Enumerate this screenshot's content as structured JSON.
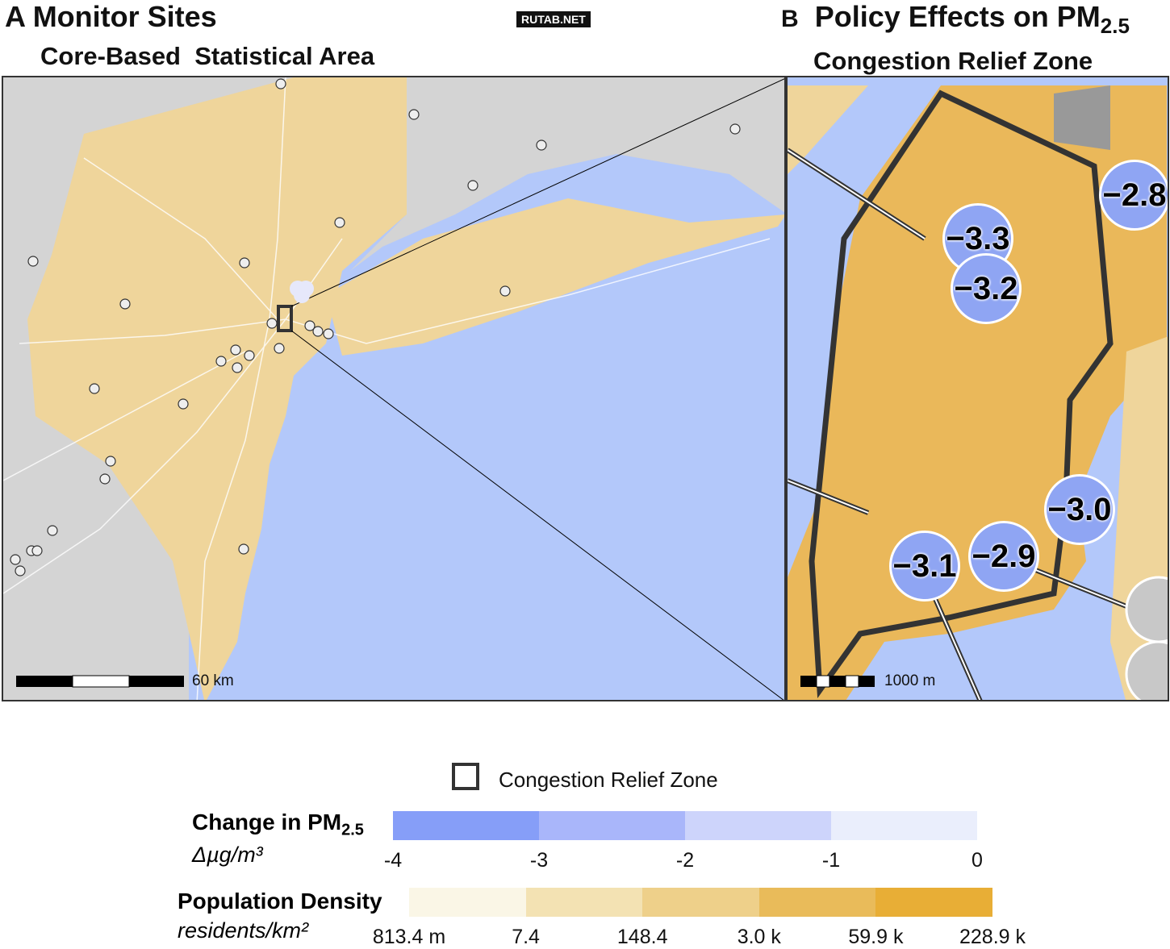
{
  "watermark": "RUTAB.NET",
  "panel_a": {
    "letter": "A",
    "title": "Monitor Sites",
    "subtitle": "Core-Based  Statistical Area",
    "scale_label": "60 km"
  },
  "panel_b": {
    "letter": "B",
    "title": "Policy Effects on PM",
    "title_sub": "2.5",
    "subtitle": "Congestion Relief Zone",
    "scale_label": "1000 m",
    "sites": [
      "−3.3",
      "−3.2",
      "−2.8",
      "−3.0",
      "−2.9",
      "−3.1"
    ]
  },
  "colors": {
    "water": "#b3c8fa",
    "land_other": "#d4d4d4",
    "zone_border": "#333333",
    "monitor_site": "#8fa5f3"
  },
  "legend": {
    "zone_label": "Congestion Relief Zone",
    "pm": {
      "title": "Change in PM",
      "title_sub": "2.5",
      "unit": "Δµg/m³",
      "ticks": [
        "-4",
        "-3",
        "-2",
        "-1",
        "0"
      ],
      "colors": [
        "#869ef8",
        "#a9b6fa",
        "#cdd4fb",
        "#eaeefc"
      ]
    },
    "density": {
      "title": "Population Density",
      "unit": "residents/km²",
      "ticks": [
        "813.4 m",
        "7.4",
        "148.4",
        "3.0 k",
        "59.9 k",
        "228.9 k"
      ],
      "colors": [
        "#faf6e6",
        "#f3e2b3",
        "#eed08a",
        "#e9bb5a",
        "#e8ae36"
      ]
    }
  }
}
